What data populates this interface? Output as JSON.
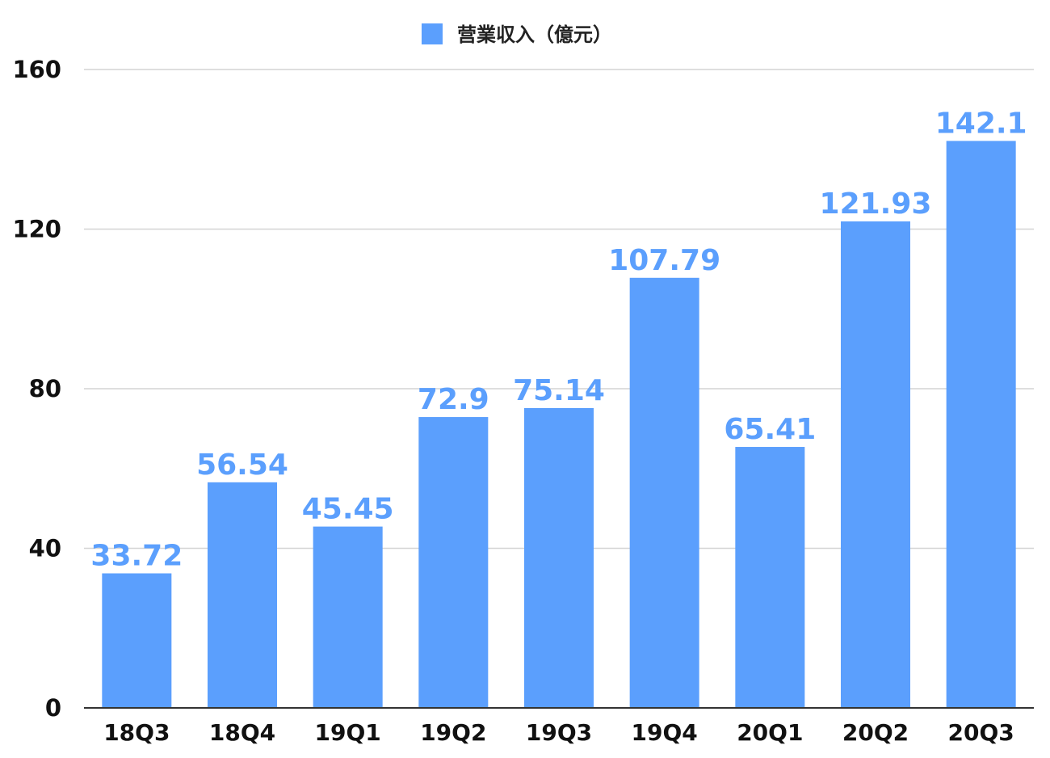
{
  "chart_data": {
    "type": "bar",
    "categories": [
      "18Q3",
      "18Q4",
      "19Q1",
      "19Q2",
      "19Q3",
      "19Q4",
      "20Q1",
      "20Q2",
      "20Q3"
    ],
    "series": [
      {
        "name": "营業収入（億元）",
        "values": [
          33.72,
          56.54,
          45.45,
          72.9,
          75.14,
          107.79,
          65.41,
          121.93,
          142.1
        ],
        "labels": [
          "33.72",
          "56.54",
          "45.45",
          "72.9",
          "75.14",
          "107.79",
          "65.41",
          "121.93",
          "142.1"
        ]
      }
    ],
    "title": "",
    "xlabel": "",
    "ylabel": "",
    "ylim": [
      0,
      160
    ],
    "yticks": [
      0,
      40,
      80,
      120,
      160
    ],
    "grid": true,
    "legend_position": "top-center"
  },
  "colors": {
    "bar": "#5b9ffd",
    "data_label": "#5b9ffd",
    "legend_swatch": "#5b9ffd"
  }
}
